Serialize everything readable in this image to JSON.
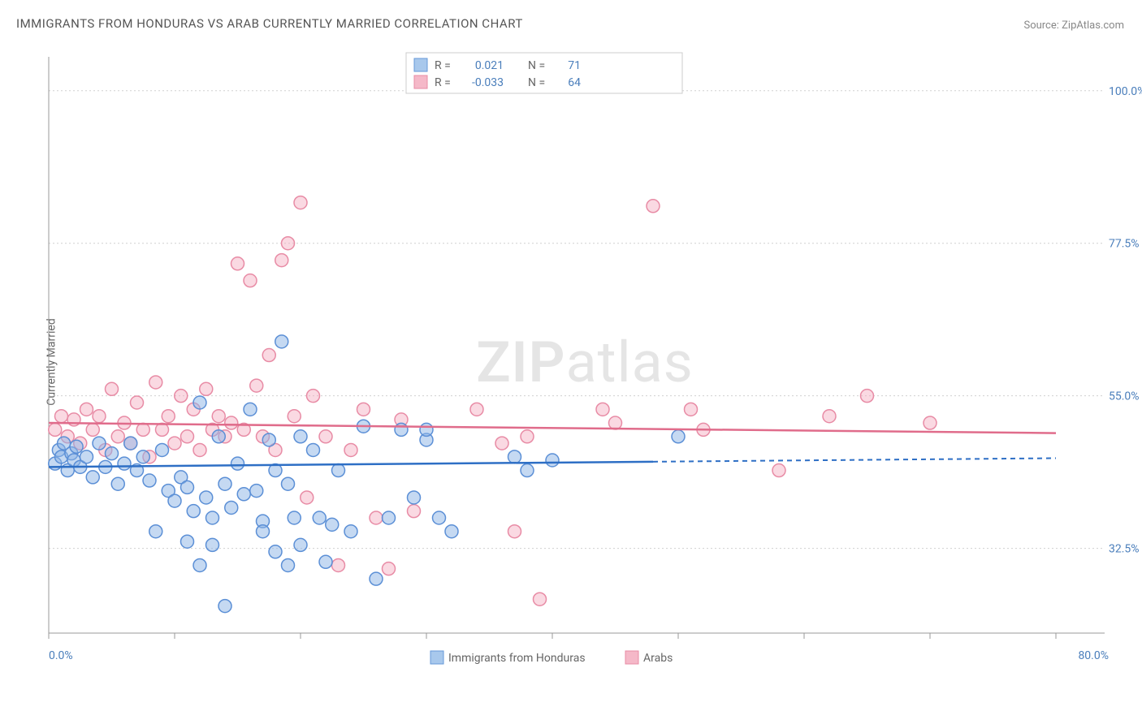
{
  "title": "IMMIGRANTS FROM HONDURAS VS ARAB CURRENTLY MARRIED CORRELATION CHART",
  "source": "Source: ZipAtlas.com",
  "y_axis_label": "Currently Married",
  "watermark_a": "ZIP",
  "watermark_b": "atlas",
  "chart": {
    "type": "scatter",
    "xlim": [
      0,
      80
    ],
    "ylim": [
      20,
      105
    ],
    "x_ticks": [
      0,
      80
    ],
    "x_tick_labels": [
      "0.0%",
      "80.0%"
    ],
    "x_minor_ticks": [
      10,
      20,
      30,
      40,
      50,
      60,
      70
    ],
    "y_ticks": [
      32.5,
      55.0,
      77.5,
      100.0
    ],
    "y_tick_labels": [
      "32.5%",
      "55.0%",
      "77.5%",
      "100.0%"
    ],
    "background_color": "#ffffff",
    "grid_color": "#d0d0d0",
    "marker_radius": 8,
    "series": {
      "blue": {
        "label": "Immigrants from Honduras",
        "color_fill": "rgba(140,180,230,0.5)",
        "color_stroke": "#5b8fd6",
        "r_label": "R =",
        "r_value": "0.021",
        "n_label": "N =",
        "n_value": "71",
        "trend": {
          "y_start": 44.5,
          "y_end": 45.8,
          "solid_until_x": 48
        },
        "points": [
          [
            0.5,
            45
          ],
          [
            0.8,
            47
          ],
          [
            1,
            46
          ],
          [
            1.2,
            48
          ],
          [
            1.5,
            44
          ],
          [
            1.8,
            46.5
          ],
          [
            2,
            45.5
          ],
          [
            2.2,
            47.5
          ],
          [
            2.5,
            44.5
          ],
          [
            3,
            46
          ],
          [
            3.5,
            43
          ],
          [
            4,
            48
          ],
          [
            4.5,
            44.5
          ],
          [
            5,
            46.5
          ],
          [
            5.5,
            42
          ],
          [
            6,
            45
          ],
          [
            6.5,
            48
          ],
          [
            7,
            44
          ],
          [
            7.5,
            46
          ],
          [
            8,
            42.5
          ],
          [
            8.5,
            35
          ],
          [
            9,
            47
          ],
          [
            9.5,
            41
          ],
          [
            10,
            39.5
          ],
          [
            10.5,
            43
          ],
          [
            11,
            41.5
          ],
          [
            11.5,
            38
          ],
          [
            12,
            54
          ],
          [
            12.5,
            40
          ],
          [
            13,
            37
          ],
          [
            13.5,
            49
          ],
          [
            14,
            42
          ],
          [
            14.5,
            38.5
          ],
          [
            15,
            45
          ],
          [
            15.5,
            40.5
          ],
          [
            16,
            53
          ],
          [
            16.5,
            41
          ],
          [
            17,
            36.5
          ],
          [
            17.5,
            48.5
          ],
          [
            18,
            44
          ],
          [
            14,
            24
          ],
          [
            18.5,
            63
          ],
          [
            19,
            42
          ],
          [
            19.5,
            37
          ],
          [
            20,
            49
          ],
          [
            11,
            33.5
          ],
          [
            12,
            30
          ],
          [
            13,
            33
          ],
          [
            17,
            35
          ],
          [
            18,
            32
          ],
          [
            19,
            30
          ],
          [
            20,
            33
          ],
          [
            21,
            47
          ],
          [
            21.5,
            37
          ],
          [
            22,
            30.5
          ],
          [
            22.5,
            36
          ],
          [
            23,
            44
          ],
          [
            24,
            35
          ],
          [
            25,
            50.5
          ],
          [
            26,
            28
          ],
          [
            27,
            37
          ],
          [
            28,
            50
          ],
          [
            29,
            40
          ],
          [
            30,
            48.5
          ],
          [
            30,
            50
          ],
          [
            31,
            37
          ],
          [
            32,
            35
          ],
          [
            37,
            46
          ],
          [
            38,
            44
          ],
          [
            40,
            45.5
          ],
          [
            50,
            49
          ]
        ]
      },
      "pink": {
        "label": "Arabs",
        "color_fill": "rgba(245,170,190,0.45)",
        "color_stroke": "#e88ba5",
        "r_label": "R =",
        "r_value": "-0.033",
        "n_label": "N =",
        "n_value": "64",
        "trend": {
          "y_start": 51.0,
          "y_end": 49.5
        },
        "points": [
          [
            0.5,
            50
          ],
          [
            1,
            52
          ],
          [
            1.5,
            49
          ],
          [
            2,
            51.5
          ],
          [
            2.5,
            48
          ],
          [
            3,
            53
          ],
          [
            3.5,
            50
          ],
          [
            4,
            52
          ],
          [
            4.5,
            47
          ],
          [
            5,
            56
          ],
          [
            5.5,
            49
          ],
          [
            6,
            51
          ],
          [
            6.5,
            48
          ],
          [
            7,
            54
          ],
          [
            7.5,
            50
          ],
          [
            8,
            46
          ],
          [
            8.5,
            57
          ],
          [
            9,
            50
          ],
          [
            9.5,
            52
          ],
          [
            10,
            48
          ],
          [
            10.5,
            55
          ],
          [
            11,
            49
          ],
          [
            11.5,
            53
          ],
          [
            12,
            47
          ],
          [
            12.5,
            56
          ],
          [
            13,
            50
          ],
          [
            13.5,
            52
          ],
          [
            14,
            49
          ],
          [
            14.5,
            51
          ],
          [
            15,
            74.5
          ],
          [
            15.5,
            50
          ],
          [
            16,
            72
          ],
          [
            16.5,
            56.5
          ],
          [
            17,
            49
          ],
          [
            17.5,
            61
          ],
          [
            18,
            47
          ],
          [
            18.5,
            75
          ],
          [
            19,
            77.5
          ],
          [
            19.5,
            52
          ],
          [
            20,
            83.5
          ],
          [
            20.5,
            40
          ],
          [
            21,
            55
          ],
          [
            22,
            49
          ],
          [
            23,
            30
          ],
          [
            24,
            47
          ],
          [
            25,
            53
          ],
          [
            26,
            37
          ],
          [
            27,
            29.5
          ],
          [
            28,
            51.5
          ],
          [
            29,
            38
          ],
          [
            34,
            53
          ],
          [
            36,
            48
          ],
          [
            37,
            35
          ],
          [
            38,
            49
          ],
          [
            39,
            25
          ],
          [
            44,
            53
          ],
          [
            45,
            51
          ],
          [
            48,
            83
          ],
          [
            51,
            53
          ],
          [
            52,
            50
          ],
          [
            58,
            44
          ],
          [
            62,
            52
          ],
          [
            65,
            55
          ],
          [
            70,
            51
          ]
        ]
      }
    }
  },
  "top_legend": {
    "r_prefix": "R =",
    "n_prefix": "N ="
  },
  "bottom_legend": {
    "blue_label": "Immigrants from Honduras",
    "pink_label": "Arabs"
  }
}
